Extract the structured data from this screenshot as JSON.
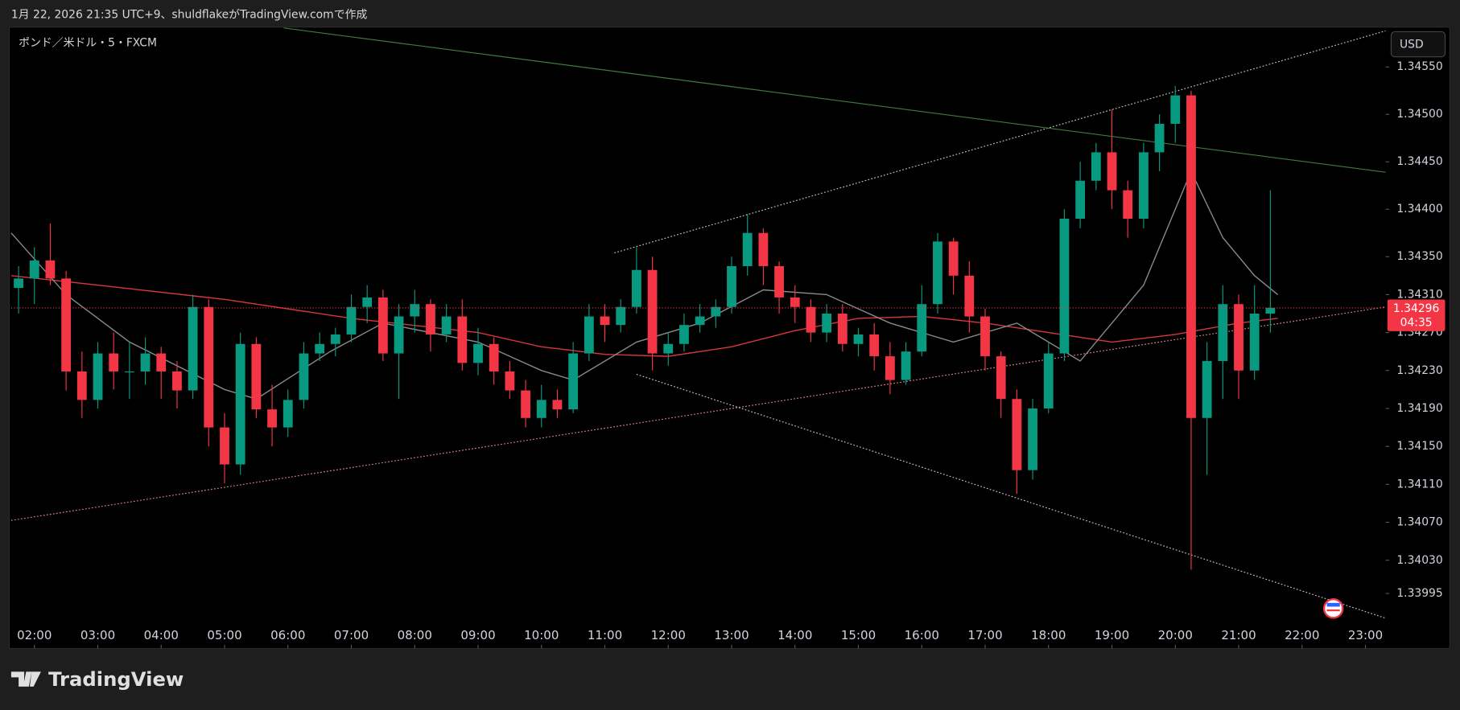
{
  "chart_data": {
    "type": "candlestick",
    "subtitle": "1月 22, 2026 21:35 UTC+9、shuldflakeがTradingView.comで作成",
    "title": "ポンド／米ドル・5・FXCM",
    "currency": "USD",
    "brand": "TradingView",
    "up_color": "#089981",
    "down_color": "#f23645",
    "xlim": [
      98,
      1399
    ],
    "ylim": [
      1.33937,
      1.34591
    ],
    "xticks": [
      {
        "value": 120,
        "label": "02:00"
      },
      {
        "value": 180,
        "label": "03:00"
      },
      {
        "value": 240,
        "label": "04:00"
      },
      {
        "value": 300,
        "label": "05:00"
      },
      {
        "value": 360,
        "label": "06:00"
      },
      {
        "value": 420,
        "label": "07:00"
      },
      {
        "value": 480,
        "label": "08:00"
      },
      {
        "value": 540,
        "label": "09:00"
      },
      {
        "value": 600,
        "label": "10:00"
      },
      {
        "value": 660,
        "label": "11:00"
      },
      {
        "value": 720,
        "label": "12:00"
      },
      {
        "value": 780,
        "label": "13:00"
      },
      {
        "value": 840,
        "label": "14:00"
      },
      {
        "value": 900,
        "label": "15:00"
      },
      {
        "value": 960,
        "label": "16:00"
      },
      {
        "value": 1020,
        "label": "17:00"
      },
      {
        "value": 1080,
        "label": "18:00"
      },
      {
        "value": 1140,
        "label": "19:00"
      },
      {
        "value": 1200,
        "label": "20:00"
      },
      {
        "value": 1260,
        "label": "21:00"
      },
      {
        "value": 1320,
        "label": "22:00"
      },
      {
        "value": 1380,
        "label": "23:00"
      }
    ],
    "yticks": [
      {
        "value": 1.3455,
        "label": "1.34550"
      },
      {
        "value": 1.345,
        "label": "1.34500"
      },
      {
        "value": 1.3445,
        "label": "1.34450"
      },
      {
        "value": 1.344,
        "label": "1.34400"
      },
      {
        "value": 1.3435,
        "label": "1.34350"
      },
      {
        "value": 1.3431,
        "label": "1.34310"
      },
      {
        "value": 1.3427,
        "label": "1.34270"
      },
      {
        "value": 1.3423,
        "label": "1.34230"
      },
      {
        "value": 1.3419,
        "label": "1.34190"
      },
      {
        "value": 1.3415,
        "label": "1.34150"
      },
      {
        "value": 1.3411,
        "label": "1.34110"
      },
      {
        "value": 1.3407,
        "label": "1.34070"
      },
      {
        "value": 1.3403,
        "label": "1.34030"
      },
      1.33995
    ],
    "x": [
      105,
      120,
      135,
      150,
      165,
      180,
      195,
      210,
      225,
      240,
      255,
      270,
      285,
      300,
      315,
      330,
      345,
      360,
      375,
      390,
      405,
      420,
      435,
      450,
      465,
      480,
      495,
      510,
      525,
      540,
      555,
      570,
      585,
      600,
      615,
      630,
      645,
      660,
      675,
      690,
      705,
      720,
      735,
      750,
      765,
      780,
      795,
      810,
      825,
      840,
      855,
      870,
      885,
      900,
      915,
      930,
      945,
      960,
      975,
      990,
      1005,
      1020,
      1035,
      1050,
      1065,
      1080,
      1095,
      1110,
      1125,
      1140,
      1155,
      1170,
      1185,
      1200,
      1215,
      1230,
      1245,
      1260,
      1275,
      1290
    ],
    "open": [
      1.34317,
      1.34327,
      1.34346,
      1.34327,
      1.34229,
      1.34199,
      1.34248,
      1.34229,
      1.34229,
      1.34248,
      1.34229,
      1.34209,
      1.34297,
      1.3417,
      1.34131,
      1.34258,
      1.34189,
      1.3417,
      1.34199,
      1.34248,
      1.34258,
      1.34268,
      1.34297,
      1.34307,
      1.34248,
      1.34287,
      1.343,
      1.34268,
      1.34287,
      1.34238,
      1.34258,
      1.34229,
      1.34209,
      1.3418,
      1.34199,
      1.34189,
      1.34248,
      1.34287,
      1.34278,
      1.34297,
      1.34336,
      1.34248,
      1.34258,
      1.34278,
      1.34287,
      1.34297,
      1.3434,
      1.34375,
      1.3434,
      1.34307,
      1.34297,
      1.3427,
      1.3429,
      1.34258,
      1.34268,
      1.34245,
      1.3422,
      1.3425,
      1.343,
      1.34366,
      1.3433,
      1.34287,
      1.34245,
      1.342,
      1.34125,
      1.3419,
      1.34248,
      1.3439,
      1.3443,
      1.3446,
      1.3442,
      1.3439,
      1.3446,
      1.3449,
      1.3452,
      1.3418,
      1.3424,
      1.343,
      1.3423,
      1.3429
    ],
    "high": [
      1.3434,
      1.3436,
      1.34385,
      1.34335,
      1.3425,
      1.3426,
      1.3427,
      1.3426,
      1.34265,
      1.34255,
      1.3424,
      1.3431,
      1.34305,
      1.34185,
      1.3427,
      1.34265,
      1.34215,
      1.3421,
      1.3426,
      1.3427,
      1.34275,
      1.3431,
      1.3432,
      1.34315,
      1.343,
      1.34315,
      1.34305,
      1.343,
      1.34305,
      1.34275,
      1.34265,
      1.3424,
      1.3422,
      1.34215,
      1.3421,
      1.3426,
      1.343,
      1.343,
      1.34305,
      1.3436,
      1.3435,
      1.3427,
      1.3429,
      1.343,
      1.34305,
      1.3435,
      1.34395,
      1.3438,
      1.34345,
      1.3432,
      1.34305,
      1.343,
      1.343,
      1.34275,
      1.3428,
      1.3426,
      1.3426,
      1.3432,
      1.34375,
      1.3437,
      1.34345,
      1.34295,
      1.3425,
      1.3421,
      1.342,
      1.3426,
      1.344,
      1.3445,
      1.3447,
      1.34505,
      1.3443,
      1.3447,
      1.345,
      1.3453,
      1.34525,
      1.3426,
      1.3432,
      1.3431,
      1.3432,
      1.3442
    ],
    "low": [
      1.3429,
      1.343,
      1.3432,
      1.34209,
      1.3418,
      1.3419,
      1.3421,
      1.342,
      1.34215,
      1.342,
      1.3419,
      1.342,
      1.3415,
      1.34111,
      1.3412,
      1.3418,
      1.3415,
      1.3416,
      1.3419,
      1.3424,
      1.34245,
      1.3426,
      1.3428,
      1.3424,
      1.342,
      1.3427,
      1.3425,
      1.3426,
      1.3423,
      1.34225,
      1.34215,
      1.342,
      1.3417,
      1.3417,
      1.3418,
      1.34185,
      1.3424,
      1.3426,
      1.3427,
      1.3429,
      1.3423,
      1.34235,
      1.3425,
      1.3427,
      1.34275,
      1.3429,
      1.3433,
      1.3432,
      1.3429,
      1.3428,
      1.3426,
      1.3426,
      1.3425,
      1.34245,
      1.3423,
      1.34205,
      1.34215,
      1.34245,
      1.3429,
      1.3431,
      1.3427,
      1.3423,
      1.3418,
      1.341,
      1.34115,
      1.34185,
      1.3424,
      1.3438,
      1.3442,
      1.344,
      1.3437,
      1.3438,
      1.3444,
      1.3447,
      1.3402,
      1.3412,
      1.342,
      1.342,
      1.3422,
      1.3427
    ],
    "close": [
      1.34327,
      1.34346,
      1.34327,
      1.34229,
      1.34199,
      1.34248,
      1.34229,
      1.34229,
      1.34248,
      1.34229,
      1.34209,
      1.34297,
      1.3417,
      1.34131,
      1.34258,
      1.34189,
      1.3417,
      1.34199,
      1.34248,
      1.34258,
      1.34268,
      1.34297,
      1.34307,
      1.34248,
      1.34287,
      1.343,
      1.34268,
      1.34287,
      1.34238,
      1.34258,
      1.34229,
      1.34209,
      1.3418,
      1.34199,
      1.34189,
      1.34248,
      1.34287,
      1.34278,
      1.34297,
      1.34336,
      1.34248,
      1.34258,
      1.34278,
      1.34287,
      1.34297,
      1.3434,
      1.34375,
      1.3434,
      1.34307,
      1.34297,
      1.3427,
      1.3429,
      1.34258,
      1.34268,
      1.34245,
      1.3422,
      1.3425,
      1.343,
      1.34366,
      1.3433,
      1.34287,
      1.34245,
      1.342,
      1.34125,
      1.3419,
      1.34248,
      1.3439,
      1.3443,
      1.3446,
      1.3442,
      1.3439,
      1.3446,
      1.3449,
      1.3452,
      1.3418,
      1.3424,
      1.343,
      1.3423,
      1.3429,
      1.34296
    ],
    "overlays": [
      {
        "color": "#d7373f",
        "x": [
          98,
          180,
          300,
          420,
          540,
          600,
          660,
          720,
          780,
          840,
          900,
          960,
          1020,
          1080,
          1140,
          1200,
          1260,
          1297
        ],
        "values": [
          1.3433,
          1.3432,
          1.34305,
          1.34285,
          1.3427,
          1.34255,
          1.34247,
          1.34245,
          1.34255,
          1.34272,
          1.34285,
          1.34287,
          1.3428,
          1.3427,
          1.3426,
          1.34268,
          1.3428,
          1.34285
        ]
      },
      {
        "color": "#8a8a8a",
        "x": [
          98,
          150,
          210,
          300,
          330,
          400,
          450,
          540,
          600,
          630,
          690,
          750,
          810,
          870,
          930,
          990,
          1050,
          1110,
          1170,
          1215,
          1245,
          1275,
          1297
        ],
        "values": [
          1.34375,
          1.3431,
          1.3426,
          1.3421,
          1.342,
          1.3425,
          1.3428,
          1.3426,
          1.3423,
          1.3422,
          1.3426,
          1.3428,
          1.34315,
          1.3431,
          1.3428,
          1.3426,
          1.3428,
          1.3424,
          1.3432,
          1.3444,
          1.3437,
          1.3433,
          1.3431
        ]
      }
    ],
    "trendlines": [
      {
        "color": "#c8c8c8",
        "dashed": true,
        "x": [
          669,
          1399
        ],
        "values": [
          1.34354,
          1.34588
        ]
      },
      {
        "color": "#e08a8a",
        "dashed": true,
        "x": [
          98,
          1399
        ],
        "values": [
          1.34072,
          1.34297
        ]
      },
      {
        "color": "#c8c8c8",
        "dashed": true,
        "x": [
          690,
          1399
        ],
        "values": [
          1.34226,
          1.33969
        ]
      },
      {
        "color": "#3f7a3f",
        "dashed": false,
        "x": [
          356,
          1399
        ],
        "values": [
          1.34591,
          1.34439
        ]
      }
    ],
    "last_price": 1.34296,
    "countdown": "04:35",
    "last_price_color": "#f23645"
  }
}
